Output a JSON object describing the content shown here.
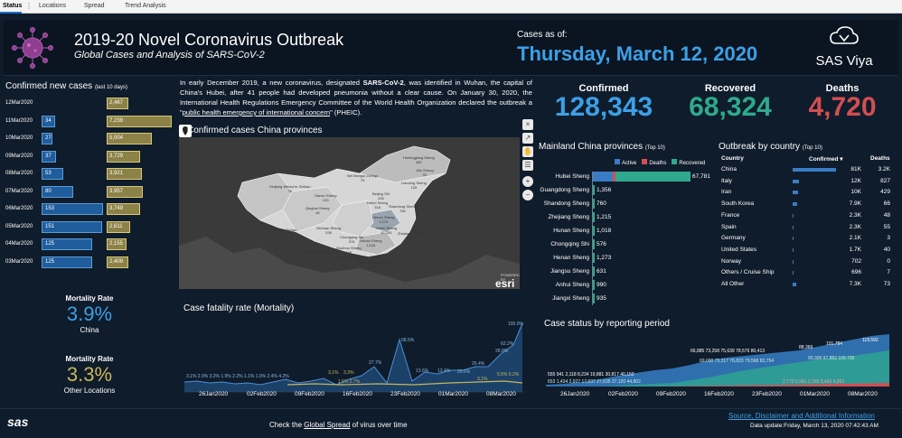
{
  "tabs": [
    {
      "label": "Status"
    },
    {
      "label": "Locations"
    },
    {
      "label": "Spread"
    },
    {
      "label": "Trend Analysis"
    }
  ],
  "header": {
    "title": "2019-20 Novel Coronavirus Outbreak",
    "subtitle": "Global Cases and Analysis of SARS-CoV-2",
    "asof_label": "Cases as of:",
    "asof_date": "Thursday, March 12, 2020",
    "brand": "SAS Viya"
  },
  "new_cases": {
    "title": "Confirmed new cases",
    "subtitle": "(last 10 days)",
    "rows": [
      {
        "date": "12Mar2020",
        "china": "",
        "other": "2,467",
        "china_frac": 0.0,
        "other_frac": 0.34
      },
      {
        "date": "11Mar2020",
        "china": "34",
        "other": "7,239",
        "china_frac": 0.22,
        "other_frac": 1.0
      },
      {
        "date": "10Mar2020",
        "china": "27",
        "other": "5,004",
        "china_frac": 0.18,
        "other_frac": 0.69
      },
      {
        "date": "09Mar2020",
        "china": "37",
        "other": "3,729",
        "china_frac": 0.24,
        "other_frac": 0.52
      },
      {
        "date": "08Mar2020",
        "china": "53",
        "other": "3,921",
        "china_frac": 0.35,
        "other_frac": 0.54
      },
      {
        "date": "07Mar2020",
        "china": "80",
        "other": "3,957",
        "china_frac": 0.52,
        "other_frac": 0.55
      },
      {
        "date": "06Mar2020",
        "china": "153",
        "other": "3,749",
        "china_frac": 1.0,
        "other_frac": 0.52
      },
      {
        "date": "05Mar2020",
        "china": "151",
        "other": "2,611",
        "china_frac": 0.99,
        "other_frac": 0.36
      },
      {
        "date": "04Mar2020",
        "china": "125",
        "other": "2,155",
        "china_frac": 0.82,
        "other_frac": 0.3
      },
      {
        "date": "03Mar2020",
        "china": "125",
        "other": "2,409",
        "china_frac": 0.82,
        "other_frac": 0.33
      }
    ]
  },
  "mortality": {
    "label1": "Mortality Rate",
    "value1": "3.9%",
    "sub1": "China",
    "label2": "Mortality Rate",
    "value2": "3.3%",
    "sub2": "Other Locations"
  },
  "intro": {
    "text_a": "In early December 2019, a new coronavirus, designated ",
    "bold": "SARS-CoV-2",
    "text_b": ", was identified in Wuhan, the capital of China's Hubei, after 41 people had developed pneumonia without a clear cause. On January 30, 2020, the International Health Regulations Emergency Committee of the World Health Organization declared the outbreak a \"",
    "link": "public health emergency of international concern",
    "text_c": "\" (PHEIC)."
  },
  "map": {
    "title": "Confirmed cases China provinces",
    "labels": [
      {
        "name": "Heilongjiang Sheng",
        "value": "482"
      },
      {
        "name": "Jilin Sheng",
        "value": "93"
      },
      {
        "name": "Liaoning Sheng",
        "value": "125"
      },
      {
        "name": "Nei Mongol Zizhiqu",
        "value": "75"
      },
      {
        "name": "Xinjiang Weiwu'er Zizhiqu",
        "value": "76"
      },
      {
        "name": "Beijing Shi",
        "value": "435"
      },
      {
        "name": "Hebei Sheng",
        "value": "318"
      },
      {
        "name": "Shandong Sheng",
        "value": "760"
      },
      {
        "name": "Qinghai Sheng",
        "value": "18"
      },
      {
        "name": "Gansu Sheng",
        "value": "133"
      },
      {
        "name": "Henan Sheng",
        "value": "1,273"
      },
      {
        "name": "Xizang Zizhiqu",
        "value": "1"
      },
      {
        "name": "Sichuan Sheng",
        "value": "539"
      },
      {
        "name": "Hubei Sheng",
        "value": "67,781"
      },
      {
        "name": "Chongqing Shi",
        "value": "576"
      },
      {
        "name": "Hunan Sheng",
        "value": "1,018"
      },
      {
        "name": "Guizhou Sheng",
        "value": "146"
      },
      {
        "name": "Yunnan Sheng",
        "value": "174"
      },
      {
        "name": "Guangxi Zhuangzu Zizhiqu",
        "value": "252"
      },
      {
        "name": "Guangdong Sheng",
        "value": "1,356"
      },
      {
        "name": "Zhejiang Sheng",
        "value": "1,215"
      }
    ],
    "esri_powered": "POWERED BY",
    "esri": "esri"
  },
  "kpis": {
    "confirmed_label": "Confirmed",
    "confirmed": "128,343",
    "recovered_label": "Recovered",
    "recovered": "68,324",
    "deaths_label": "Deaths",
    "deaths": "4,720",
    "colors": {
      "confirmed": "#3ca0e7",
      "recovered": "#2fa98d",
      "deaths": "#d14f52"
    }
  },
  "provinces": {
    "title": "Mainland China provinces",
    "subtitle": "(Top 10)",
    "legend": [
      {
        "label": "Active",
        "color": "#3a7cc4"
      },
      {
        "label": "Deaths",
        "color": "#d14f52"
      },
      {
        "label": "Recovered",
        "color": "#2fa98d"
      }
    ],
    "rows": [
      {
        "name": "Hubei Sheng",
        "value": "67,781"
      },
      {
        "name": "Guangdong Sheng",
        "value": "1,356"
      },
      {
        "name": "Shandong Sheng",
        "value": "760"
      },
      {
        "name": "Zhejiang Sheng",
        "value": "1,215"
      },
      {
        "name": "Hunan Sheng",
        "value": "1,018"
      },
      {
        "name": "Chongqing Shi",
        "value": "576"
      },
      {
        "name": "Henan Sheng",
        "value": "1,273"
      },
      {
        "name": "Jiangsu Sheng",
        "value": "631"
      },
      {
        "name": "Anhui Sheng",
        "value": "990"
      },
      {
        "name": "Jiangxi Sheng",
        "value": "935"
      }
    ]
  },
  "outbreak": {
    "title": "Outbreak by country",
    "subtitle": "(Top 10)",
    "headers": {
      "country": "Country",
      "confirmed": "Confirmed ▾",
      "deaths": "Deaths"
    },
    "rows": [
      {
        "country": "China",
        "confirmed": "81K",
        "deaths": "3.2K",
        "frac": 1.0
      },
      {
        "country": "Italy",
        "confirmed": "12K",
        "deaths": "827",
        "frac": 0.15
      },
      {
        "country": "Iran",
        "confirmed": "10K",
        "deaths": "429",
        "frac": 0.12
      },
      {
        "country": "South Korea",
        "confirmed": "7.9K",
        "deaths": "66",
        "frac": 0.1
      },
      {
        "country": "France",
        "confirmed": "2.3K",
        "deaths": "48",
        "frac": 0.03
      },
      {
        "country": "Spain",
        "confirmed": "2.3K",
        "deaths": "55",
        "frac": 0.03
      },
      {
        "country": "Germany",
        "confirmed": "2.1K",
        "deaths": "3",
        "frac": 0.03
      },
      {
        "country": "United States",
        "confirmed": "1.7K",
        "deaths": "40",
        "frac": 0.02
      },
      {
        "country": "Norway",
        "confirmed": "702",
        "deaths": "0",
        "frac": 0.01
      },
      {
        "country": "Others / Cruise Ship",
        "confirmed": "696",
        "deaths": "7",
        "frac": 0.01
      },
      {
        "country": "All Other",
        "confirmed": "7.3K",
        "deaths": "73",
        "frac": 0.09
      }
    ]
  },
  "fatality_chart": {
    "title": "Case fatality rate (Mortality)",
    "x_ticks": [
      "26Jan2020",
      "02Feb2020",
      "09Feb2020",
      "16Feb2020",
      "23Feb2020",
      "01Mar2020",
      "08Mar2020"
    ],
    "labels_blue": [
      "3.1%",
      "2.9%",
      "3.2%",
      "1.9%",
      "2.2%",
      "1.1%",
      "1.9%",
      "2.4%",
      "4.2%",
      "0.6%",
      "27.7%",
      "68.5%",
      "13.6%",
      "13.4%",
      "20.6%",
      "26.4%",
      "28.8%",
      "19.0%",
      "62.2%",
      "100.0%"
    ],
    "labels_yellow": [
      "3.1%",
      "3.3%",
      "1.5%",
      "2.7%",
      "3.1%",
      "5.5%",
      "5.2%"
    ]
  },
  "status_chart": {
    "title": "Case status by reporting period",
    "x_ticks": [
      "26Jan2020",
      "02Feb2020",
      "09Feb2020",
      "16Feb2020",
      "23Feb2020",
      "01Mar2020",
      "08Mar2020"
    ],
    "confirmed_labels": [
      "555",
      "941",
      "2,118",
      "8,234",
      "19,881",
      "30,817",
      "40,150",
      "44,802",
      "66,885",
      "73,258",
      "75,639",
      "78,579",
      "80,413",
      "88,369",
      "101,784",
      "118,592"
    ],
    "recovered_labels": [
      "653",
      "1,434",
      "2,927",
      "17,037",
      "27,635",
      "37,120",
      "51,108",
      "69,030",
      "75,317",
      "76,823",
      "79,568",
      "82,754",
      "90,306",
      "97,882",
      "109,795"
    ],
    "deaths_labels": [
      "2,770",
      "2,941",
      "3,160",
      "3,460",
      "4,262"
    ]
  },
  "footer": {
    "brand": "sas",
    "check_text_a": "Check the ",
    "check_link": "Global Spread",
    "check_text_b": " of virus over time",
    "source_link": "Source, Disclaimer and Additional Information",
    "update_text": "Data update:Friday, March 13, 2020 07:42:43 AM"
  }
}
